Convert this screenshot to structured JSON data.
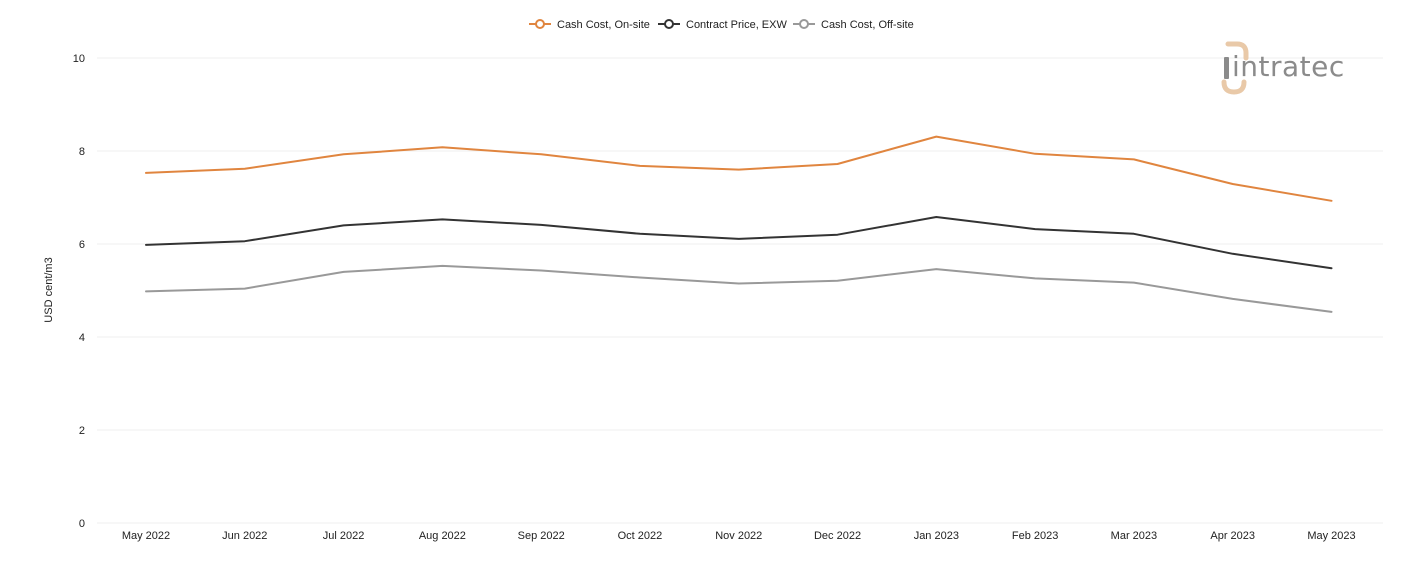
{
  "brand": {
    "logo_text": "intratec",
    "logo_accent_color": "#e9c9a8",
    "logo_text_color": "#8b8b8b"
  },
  "chart_data": {
    "type": "line",
    "title": "",
    "xlabel": "",
    "ylabel": "USD cent/m3",
    "ylim": [
      0,
      10
    ],
    "yticks": [
      0,
      2,
      4,
      6,
      8,
      10
    ],
    "grid": true,
    "legend_position": "top-center",
    "categories": [
      "May 2022",
      "Jun 2022",
      "Jul 2022",
      "Aug 2022",
      "Sep 2022",
      "Oct 2022",
      "Nov 2022",
      "Dec 2022",
      "Jan 2023",
      "Feb 2023",
      "Mar 2023",
      "Apr 2023",
      "May 2023"
    ],
    "series": [
      {
        "name": "Cash Cost, On-site",
        "color": "#e0853f",
        "values": [
          7.53,
          7.62,
          7.93,
          8.08,
          7.93,
          7.68,
          7.6,
          7.72,
          8.31,
          7.94,
          7.82,
          7.29,
          6.93
        ]
      },
      {
        "name": "Contract Price, EXW",
        "color": "#333333",
        "values": [
          5.98,
          6.06,
          6.4,
          6.53,
          6.41,
          6.22,
          6.11,
          6.2,
          6.58,
          6.32,
          6.22,
          5.79,
          5.48
        ]
      },
      {
        "name": "Cash Cost, Off-site",
        "color": "#999999",
        "values": [
          4.98,
          5.04,
          5.4,
          5.53,
          5.43,
          5.28,
          5.15,
          5.21,
          5.46,
          5.26,
          5.17,
          4.82,
          4.54
        ]
      }
    ]
  }
}
